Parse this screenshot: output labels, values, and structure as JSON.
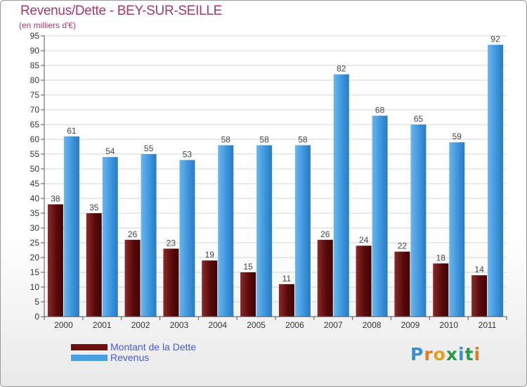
{
  "chart_data": {
    "type": "bar",
    "title": "Revenus/Dette - BEY-SUR-SEILLE",
    "subtitle": "(en milliers d'€)",
    "categories": [
      "2000",
      "2001",
      "2002",
      "2003",
      "2004",
      "2005",
      "2006",
      "2007",
      "2008",
      "2009",
      "2010",
      "2011"
    ],
    "series": [
      {
        "name": "Montant de la Dette",
        "color": "#6b0f0f",
        "values": [
          38,
          35,
          26,
          23,
          19,
          15,
          11,
          26,
          24,
          22,
          18,
          14
        ]
      },
      {
        "name": "Revenus",
        "color": "#4a9fe0",
        "values": [
          61,
          54,
          55,
          53,
          58,
          58,
          58,
          82,
          68,
          65,
          59,
          92
        ]
      }
    ],
    "ylim": [
      0,
      95
    ],
    "ytick_step": 5,
    "grid": true,
    "legend_position": "bottom-left"
  },
  "logo": {
    "text": "Proxiti",
    "colors": [
      "#3a8fd0",
      "#e07b1f",
      "#e0a020",
      "#2a9a4a",
      "#3a8fd0",
      "#2a9a4a",
      "#e07b1f"
    ]
  }
}
